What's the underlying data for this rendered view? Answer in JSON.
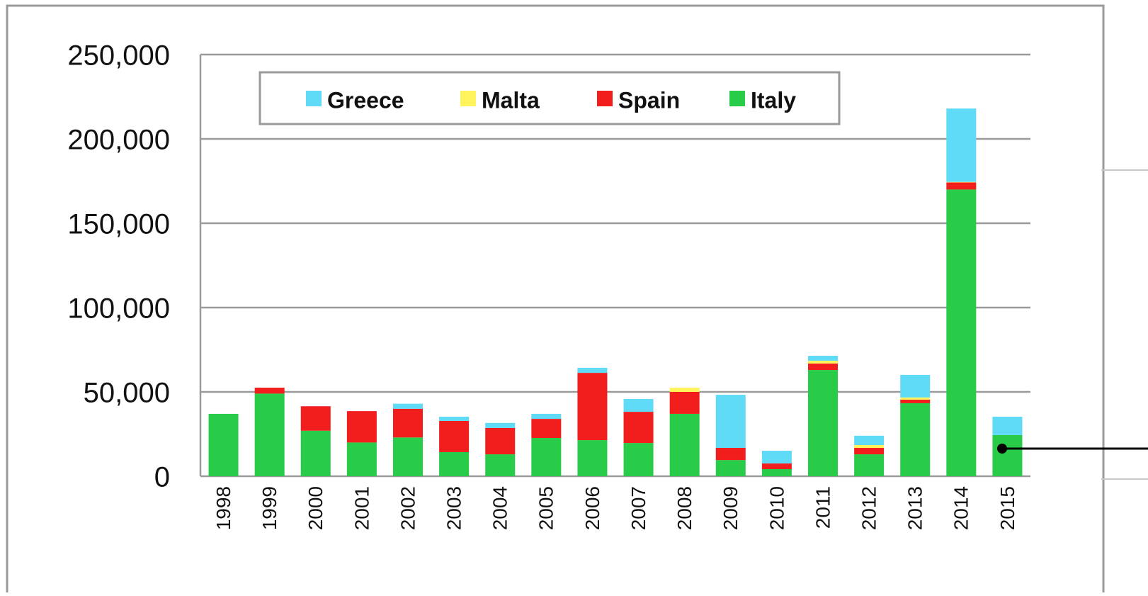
{
  "chart_data": {
    "type": "stacked_bar",
    "categories": [
      "1998",
      "1999",
      "2000",
      "2001",
      "2002",
      "2003",
      "2004",
      "2005",
      "2006",
      "2007",
      "2008",
      "2009",
      "2010",
      "2011",
      "2012",
      "2013",
      "2014",
      "2015"
    ],
    "series": [
      {
        "name": "Greece",
        "color": "#5fdaf7",
        "values": [
          0,
          0,
          0,
          0,
          3000,
          2500,
          3000,
          3000,
          3000,
          7600,
          0,
          31500,
          7500,
          2900,
          5500,
          13400,
          43500,
          10900
        ]
      },
      {
        "name": "Malta",
        "color": "#fff45c",
        "values": [
          0,
          0,
          0,
          0,
          0,
          0,
          0,
          0,
          0,
          0,
          2500,
          0,
          0,
          1700,
          1700,
          1300,
          300,
          0
        ]
      },
      {
        "name": "Spain",
        "color": "#f21d1d",
        "values": [
          0,
          3500,
          14500,
          18600,
          17000,
          18500,
          15600,
          11300,
          39900,
          18500,
          13000,
          7200,
          3400,
          3800,
          3800,
          2100,
          4200,
          0
        ]
      },
      {
        "name": "Italy",
        "color": "#28cc48",
        "values": [
          37000,
          49000,
          27000,
          20000,
          23000,
          14300,
          13000,
          22700,
          21400,
          19700,
          37000,
          9600,
          4200,
          63000,
          13000,
          43300,
          170000,
          24400
        ]
      }
    ],
    "ylim": [
      0,
      250000
    ],
    "yticks": [
      0,
      {
        "value": 50000,
        "label": "50,000"
      },
      {
        "value": 100000,
        "label": "100,000"
      },
      {
        "value": 150000,
        "label": "150,000"
      },
      {
        "value": 200000,
        "label": "200,000"
      },
      {
        "value": 250000,
        "label": "250,000"
      }
    ],
    "grid": true,
    "legend": "top"
  }
}
